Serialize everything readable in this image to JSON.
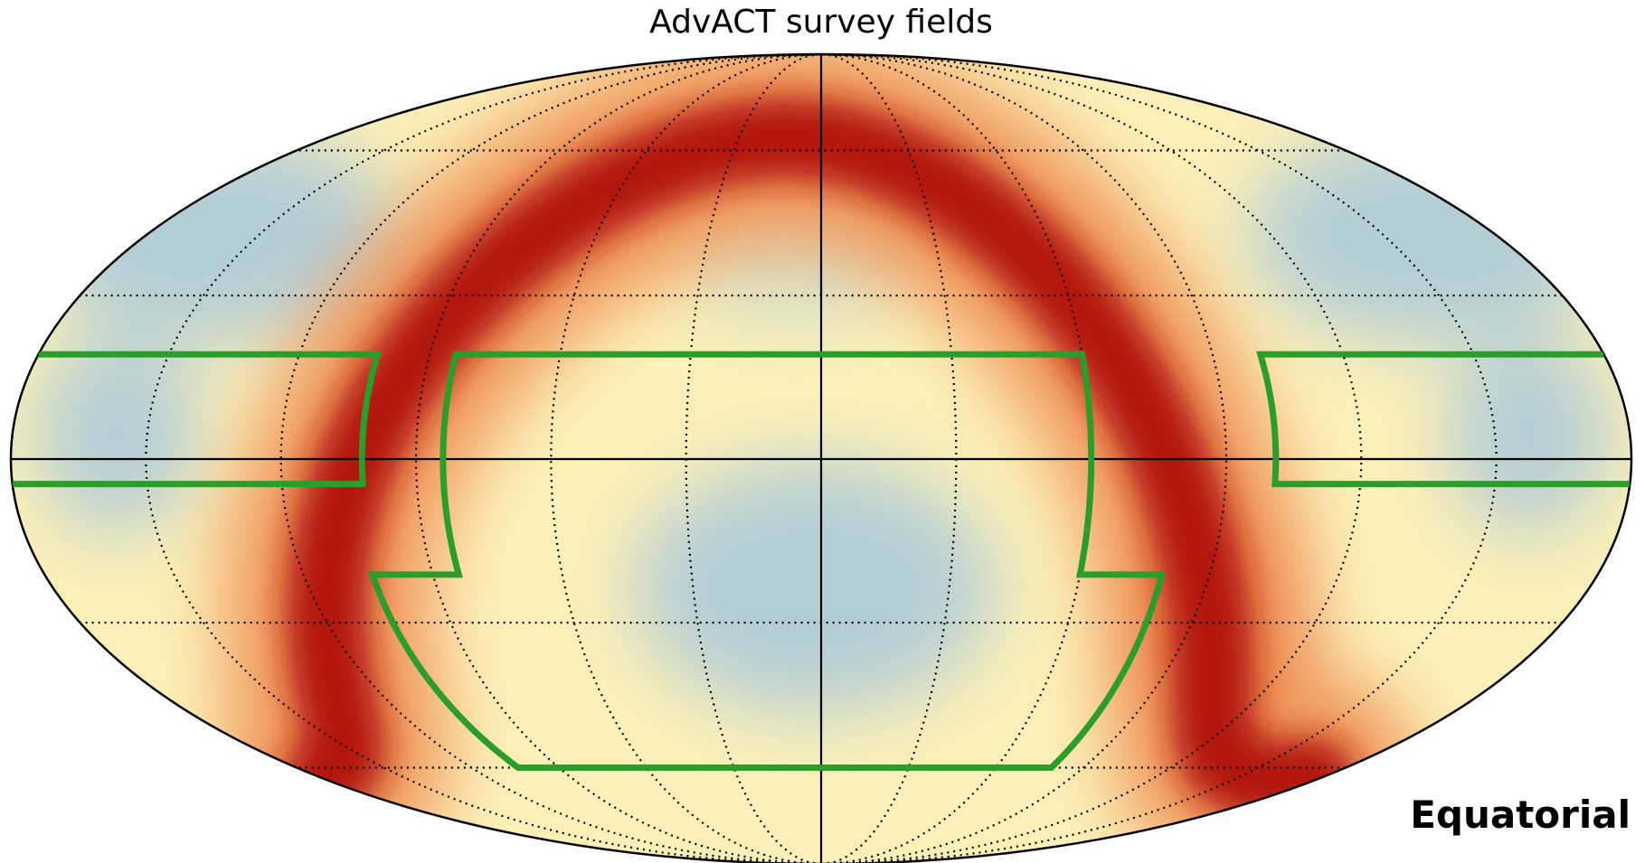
{
  "title": "AdvACT survey fields",
  "frame_label": "Equatorial"
}
